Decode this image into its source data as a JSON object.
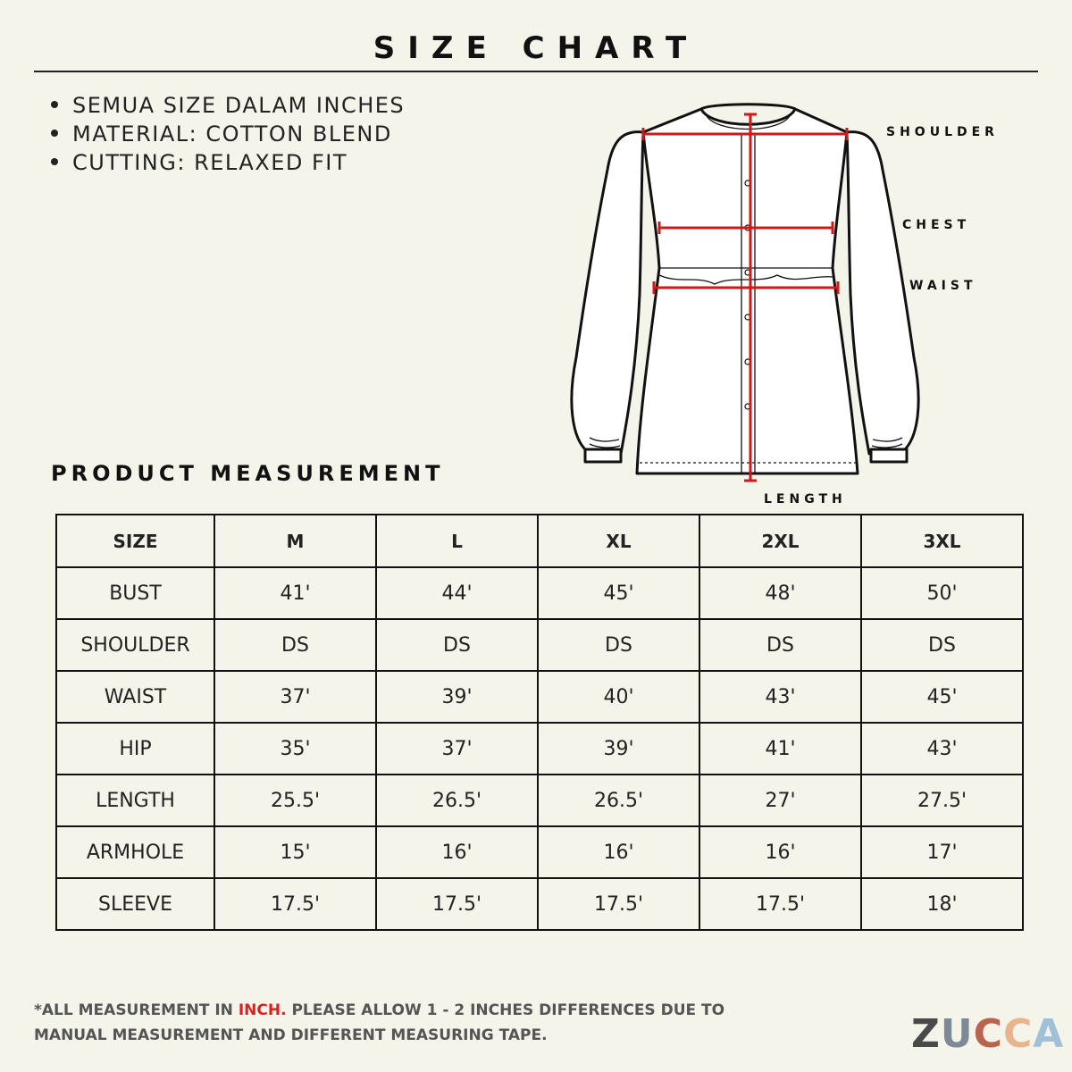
{
  "header": {
    "title": "SIZE CHART"
  },
  "notes": [
    "SEMUA SIZE DALAM INCHES",
    "MATERIAL: COTTON BLEND",
    "CUTTING: RELAXED FIT"
  ],
  "diagram": {
    "labels": [
      "SHOULDER",
      "CHEST",
      "WAIST",
      "LENGTH"
    ]
  },
  "section_title": "PRODUCT MEASUREMENT",
  "table": {
    "header": [
      "SIZE",
      "M",
      "L",
      "XL",
      "2XL",
      "3XL"
    ],
    "rows": [
      [
        "BUST",
        "41'",
        "44'",
        "45'",
        "48'",
        "50'"
      ],
      [
        "SHOULDER",
        "DS",
        "DS",
        "DS",
        "DS",
        "DS"
      ],
      [
        "WAIST",
        "37'",
        "39'",
        "40'",
        "43'",
        "45'"
      ],
      [
        "HIP",
        "35'",
        "37'",
        "39'",
        "41'",
        "43'"
      ],
      [
        "LENGTH",
        "25.5'",
        "26.5'",
        "26.5'",
        "27'",
        "27.5'"
      ],
      [
        "ARMHOLE",
        "15'",
        "16'",
        "16'",
        "16'",
        "17'"
      ],
      [
        "SLEEVE",
        "17.5'",
        "17.5'",
        "17.5'",
        "17.5'",
        "18'"
      ]
    ]
  },
  "footer": {
    "note_parts": [
      "*ALL MEASUREMENT IN",
      "INCH.",
      "PLEASE ALLOW 1 - 2 INCHES DIFFERENCES DUE TO MANUAL MEASUREMENT AND DIFFERENT MEASURING TAPE."
    ]
  },
  "logo": {
    "letters": [
      "Z",
      "U",
      "C",
      "C",
      "A"
    ]
  }
}
